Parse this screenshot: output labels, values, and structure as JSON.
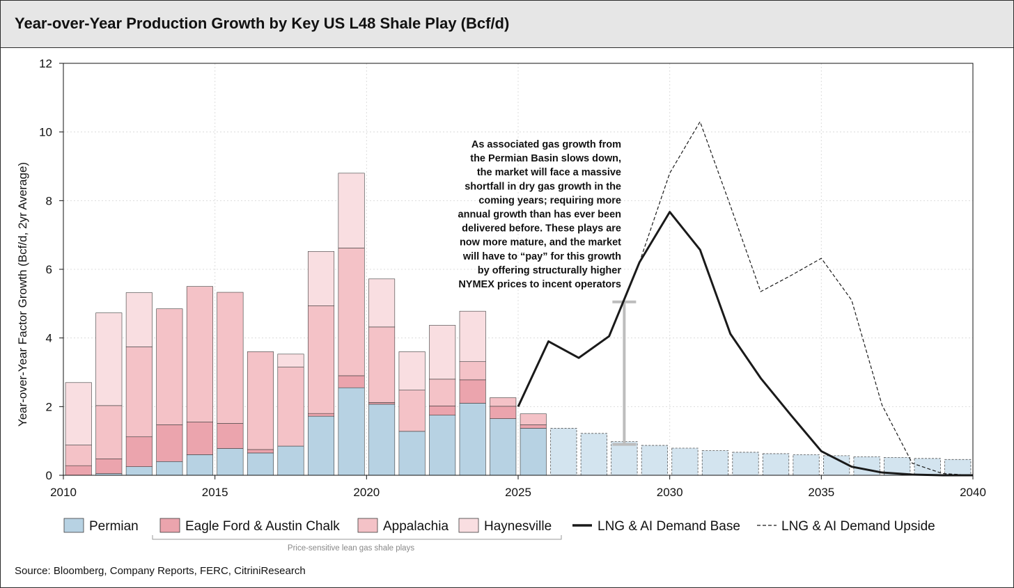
{
  "title": "Year-over-Year Production Growth by Key US L48 Shale Play (Bcf/d)",
  "source": "Source: Bloomberg, Company Reports, FERC, CitriniResearch",
  "annotation": [
    "As associated gas growth from",
    "the Permian Basin slows down,",
    "the market will face a massive",
    "shortfall in dry gas growth in the",
    "coming years; requiring more",
    "annual growth than has ever been",
    "delivered before. These plays are",
    "now more mature, and the market",
    "will have to “pay” for this growth",
    "by offering structurally higher",
    "NYMEX prices to incent operators"
  ],
  "bracket_label": "Price-sensitive lean gas shale plays",
  "colors": {
    "permian": "#b7d2e3",
    "permian_forecast": "#d3e4ef",
    "eagle_ford": "#eba4ad",
    "appalachia": "#f4c2c7",
    "haynesville": "#f9dee1",
    "base_line": "#1a1a1a",
    "upside_line": "#1a1a1a",
    "error_bar": "#bdbdbd"
  },
  "chart_data": {
    "type": "bar",
    "stacked": true,
    "ylabel": "Year-over-Year Factor Growth (Bcf/d, 2yr Average)",
    "xlim": [
      2010,
      2040
    ],
    "ylim": [
      0,
      12
    ],
    "x_ticks": [
      2010,
      2015,
      2020,
      2025,
      2030,
      2035,
      2040
    ],
    "y_ticks": [
      0,
      2,
      4,
      6,
      8,
      10,
      12
    ],
    "grid": true,
    "legend": "bottom",
    "legend_labels": [
      "Permian",
      "Eagle Ford & Austin Chalk",
      "Appalachia",
      "Haynesville",
      "LNG & AI Demand Base",
      "LNG & AI Demand Upside"
    ],
    "historical_years": [
      2010,
      2011,
      2012,
      2013,
      2014,
      2015,
      2016,
      2017,
      2018,
      2019,
      2020,
      2021,
      2022,
      2023,
      2024,
      2025
    ],
    "series": [
      {
        "name": "Permian",
        "values": [
          0.0,
          0.05,
          0.25,
          0.4,
          0.6,
          0.78,
          0.65,
          0.85,
          1.72,
          2.55,
          2.07,
          1.28,
          1.75,
          2.1,
          1.65,
          1.37
        ]
      },
      {
        "name": "Eagle Ford & Austin Chalk",
        "values": [
          0.28,
          0.43,
          0.87,
          1.07,
          0.95,
          0.73,
          0.1,
          0.0,
          0.08,
          0.35,
          0.05,
          0.0,
          0.27,
          0.68,
          0.36,
          0.1
        ]
      },
      {
        "name": "Appalachia",
        "values": [
          0.6,
          1.55,
          2.62,
          3.38,
          3.95,
          3.82,
          2.85,
          2.3,
          3.14,
          3.72,
          2.2,
          1.2,
          0.78,
          0.53,
          0.25,
          0.32
        ]
      },
      {
        "name": "Haynesville",
        "values": [
          1.82,
          2.7,
          1.58,
          0.0,
          0.0,
          0.0,
          0.0,
          0.38,
          1.58,
          2.18,
          1.4,
          1.12,
          1.57,
          1.47,
          0.0,
          0.0
        ]
      }
    ],
    "permian_forecast": {
      "years": [
        2026,
        2027,
        2028,
        2029,
        2030,
        2031,
        2032,
        2033,
        2034,
        2035,
        2036,
        2037,
        2038,
        2039,
        2040
      ],
      "values": [
        1.37,
        1.22,
        0.98,
        0.87,
        0.79,
        0.72,
        0.67,
        0.63,
        0.6,
        0.57,
        0.54,
        0.52,
        0.49,
        0.46,
        0.44
      ]
    },
    "lines": [
      {
        "name": "LNG & AI Demand Base",
        "x": [
          2025,
          2026,
          2027,
          2028,
          2029,
          2030,
          2031,
          2032,
          2033,
          2034,
          2035,
          2036,
          2037,
          2038,
          2039,
          2040
        ],
        "y": [
          2.0,
          3.9,
          3.42,
          4.05,
          6.2,
          7.67,
          6.57,
          4.12,
          2.83,
          1.75,
          0.7,
          0.25,
          0.08,
          0.02,
          0.0,
          0.0
        ]
      },
      {
        "name": "LNG & AI Demand Upside",
        "x": [
          2029,
          2030,
          2031,
          2032,
          2033,
          2034,
          2035,
          2036,
          2037,
          2038,
          2039,
          2040
        ],
        "y": [
          6.2,
          8.8,
          10.3,
          7.85,
          5.35,
          5.82,
          6.32,
          5.1,
          2.05,
          0.35,
          0.05,
          0.0
        ]
      }
    ],
    "range_bar": {
      "x": 2028.5,
      "low": 0.9,
      "high": 5.05
    }
  }
}
